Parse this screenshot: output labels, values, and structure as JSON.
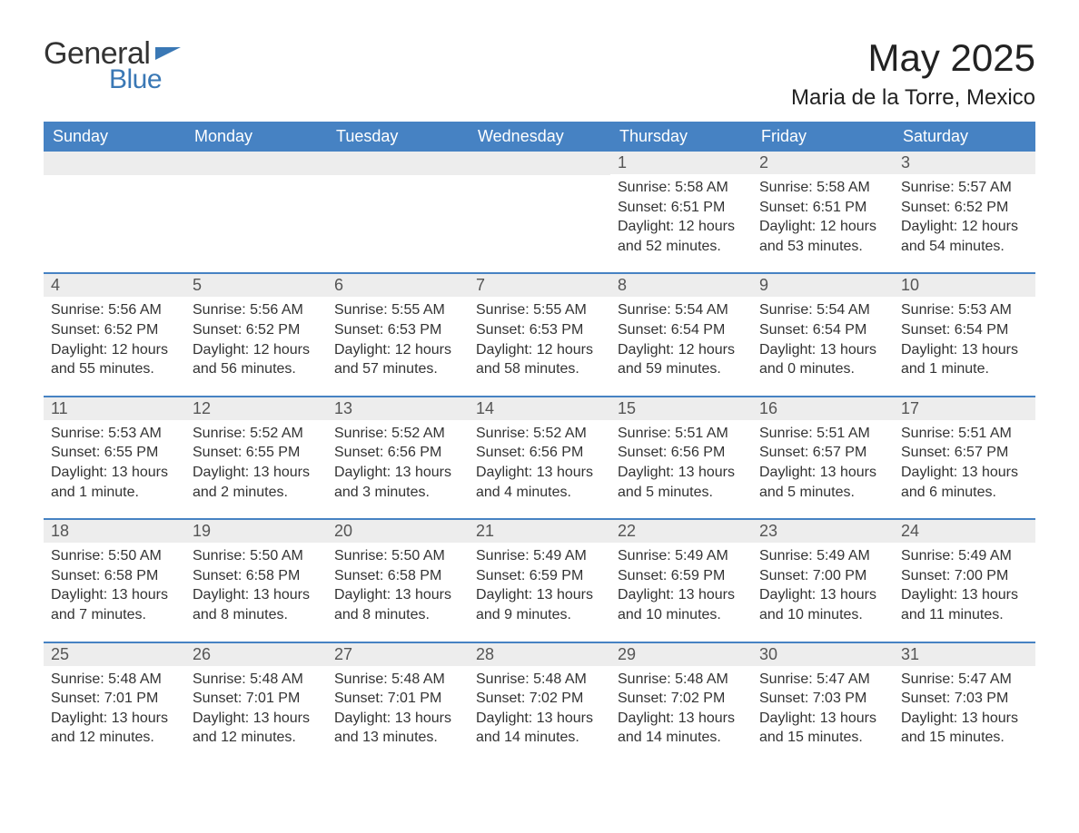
{
  "brand": {
    "part1": "General",
    "part2": "Blue"
  },
  "title": "May 2025",
  "location": "Maria de la Torre, Mexico",
  "colors": {
    "header_bg": "#4682c3",
    "header_text": "#ffffff",
    "daynum_bg": "#ededed",
    "daynum_text": "#555555",
    "body_text": "#333333",
    "week_divider": "#4682c3",
    "brand_blue": "#3a78b5",
    "page_bg": "#ffffff"
  },
  "days_of_week": [
    "Sunday",
    "Monday",
    "Tuesday",
    "Wednesday",
    "Thursday",
    "Friday",
    "Saturday"
  ],
  "weeks": [
    [
      {
        "n": "",
        "sunrise": "",
        "sunset": "",
        "daylight": ""
      },
      {
        "n": "",
        "sunrise": "",
        "sunset": "",
        "daylight": ""
      },
      {
        "n": "",
        "sunrise": "",
        "sunset": "",
        "daylight": ""
      },
      {
        "n": "",
        "sunrise": "",
        "sunset": "",
        "daylight": ""
      },
      {
        "n": "1",
        "sunrise": "Sunrise: 5:58 AM",
        "sunset": "Sunset: 6:51 PM",
        "daylight": "Daylight: 12 hours and 52 minutes."
      },
      {
        "n": "2",
        "sunrise": "Sunrise: 5:58 AM",
        "sunset": "Sunset: 6:51 PM",
        "daylight": "Daylight: 12 hours and 53 minutes."
      },
      {
        "n": "3",
        "sunrise": "Sunrise: 5:57 AM",
        "sunset": "Sunset: 6:52 PM",
        "daylight": "Daylight: 12 hours and 54 minutes."
      }
    ],
    [
      {
        "n": "4",
        "sunrise": "Sunrise: 5:56 AM",
        "sunset": "Sunset: 6:52 PM",
        "daylight": "Daylight: 12 hours and 55 minutes."
      },
      {
        "n": "5",
        "sunrise": "Sunrise: 5:56 AM",
        "sunset": "Sunset: 6:52 PM",
        "daylight": "Daylight: 12 hours and 56 minutes."
      },
      {
        "n": "6",
        "sunrise": "Sunrise: 5:55 AM",
        "sunset": "Sunset: 6:53 PM",
        "daylight": "Daylight: 12 hours and 57 minutes."
      },
      {
        "n": "7",
        "sunrise": "Sunrise: 5:55 AM",
        "sunset": "Sunset: 6:53 PM",
        "daylight": "Daylight: 12 hours and 58 minutes."
      },
      {
        "n": "8",
        "sunrise": "Sunrise: 5:54 AM",
        "sunset": "Sunset: 6:54 PM",
        "daylight": "Daylight: 12 hours and 59 minutes."
      },
      {
        "n": "9",
        "sunrise": "Sunrise: 5:54 AM",
        "sunset": "Sunset: 6:54 PM",
        "daylight": "Daylight: 13 hours and 0 minutes."
      },
      {
        "n": "10",
        "sunrise": "Sunrise: 5:53 AM",
        "sunset": "Sunset: 6:54 PM",
        "daylight": "Daylight: 13 hours and 1 minute."
      }
    ],
    [
      {
        "n": "11",
        "sunrise": "Sunrise: 5:53 AM",
        "sunset": "Sunset: 6:55 PM",
        "daylight": "Daylight: 13 hours and 1 minute."
      },
      {
        "n": "12",
        "sunrise": "Sunrise: 5:52 AM",
        "sunset": "Sunset: 6:55 PM",
        "daylight": "Daylight: 13 hours and 2 minutes."
      },
      {
        "n": "13",
        "sunrise": "Sunrise: 5:52 AM",
        "sunset": "Sunset: 6:56 PM",
        "daylight": "Daylight: 13 hours and 3 minutes."
      },
      {
        "n": "14",
        "sunrise": "Sunrise: 5:52 AM",
        "sunset": "Sunset: 6:56 PM",
        "daylight": "Daylight: 13 hours and 4 minutes."
      },
      {
        "n": "15",
        "sunrise": "Sunrise: 5:51 AM",
        "sunset": "Sunset: 6:56 PM",
        "daylight": "Daylight: 13 hours and 5 minutes."
      },
      {
        "n": "16",
        "sunrise": "Sunrise: 5:51 AM",
        "sunset": "Sunset: 6:57 PM",
        "daylight": "Daylight: 13 hours and 5 minutes."
      },
      {
        "n": "17",
        "sunrise": "Sunrise: 5:51 AM",
        "sunset": "Sunset: 6:57 PM",
        "daylight": "Daylight: 13 hours and 6 minutes."
      }
    ],
    [
      {
        "n": "18",
        "sunrise": "Sunrise: 5:50 AM",
        "sunset": "Sunset: 6:58 PM",
        "daylight": "Daylight: 13 hours and 7 minutes."
      },
      {
        "n": "19",
        "sunrise": "Sunrise: 5:50 AM",
        "sunset": "Sunset: 6:58 PM",
        "daylight": "Daylight: 13 hours and 8 minutes."
      },
      {
        "n": "20",
        "sunrise": "Sunrise: 5:50 AM",
        "sunset": "Sunset: 6:58 PM",
        "daylight": "Daylight: 13 hours and 8 minutes."
      },
      {
        "n": "21",
        "sunrise": "Sunrise: 5:49 AM",
        "sunset": "Sunset: 6:59 PM",
        "daylight": "Daylight: 13 hours and 9 minutes."
      },
      {
        "n": "22",
        "sunrise": "Sunrise: 5:49 AM",
        "sunset": "Sunset: 6:59 PM",
        "daylight": "Daylight: 13 hours and 10 minutes."
      },
      {
        "n": "23",
        "sunrise": "Sunrise: 5:49 AM",
        "sunset": "Sunset: 7:00 PM",
        "daylight": "Daylight: 13 hours and 10 minutes."
      },
      {
        "n": "24",
        "sunrise": "Sunrise: 5:49 AM",
        "sunset": "Sunset: 7:00 PM",
        "daylight": "Daylight: 13 hours and 11 minutes."
      }
    ],
    [
      {
        "n": "25",
        "sunrise": "Sunrise: 5:48 AM",
        "sunset": "Sunset: 7:01 PM",
        "daylight": "Daylight: 13 hours and 12 minutes."
      },
      {
        "n": "26",
        "sunrise": "Sunrise: 5:48 AM",
        "sunset": "Sunset: 7:01 PM",
        "daylight": "Daylight: 13 hours and 12 minutes."
      },
      {
        "n": "27",
        "sunrise": "Sunrise: 5:48 AM",
        "sunset": "Sunset: 7:01 PM",
        "daylight": "Daylight: 13 hours and 13 minutes."
      },
      {
        "n": "28",
        "sunrise": "Sunrise: 5:48 AM",
        "sunset": "Sunset: 7:02 PM",
        "daylight": "Daylight: 13 hours and 14 minutes."
      },
      {
        "n": "29",
        "sunrise": "Sunrise: 5:48 AM",
        "sunset": "Sunset: 7:02 PM",
        "daylight": "Daylight: 13 hours and 14 minutes."
      },
      {
        "n": "30",
        "sunrise": "Sunrise: 5:47 AM",
        "sunset": "Sunset: 7:03 PM",
        "daylight": "Daylight: 13 hours and 15 minutes."
      },
      {
        "n": "31",
        "sunrise": "Sunrise: 5:47 AM",
        "sunset": "Sunset: 7:03 PM",
        "daylight": "Daylight: 13 hours and 15 minutes."
      }
    ]
  ]
}
